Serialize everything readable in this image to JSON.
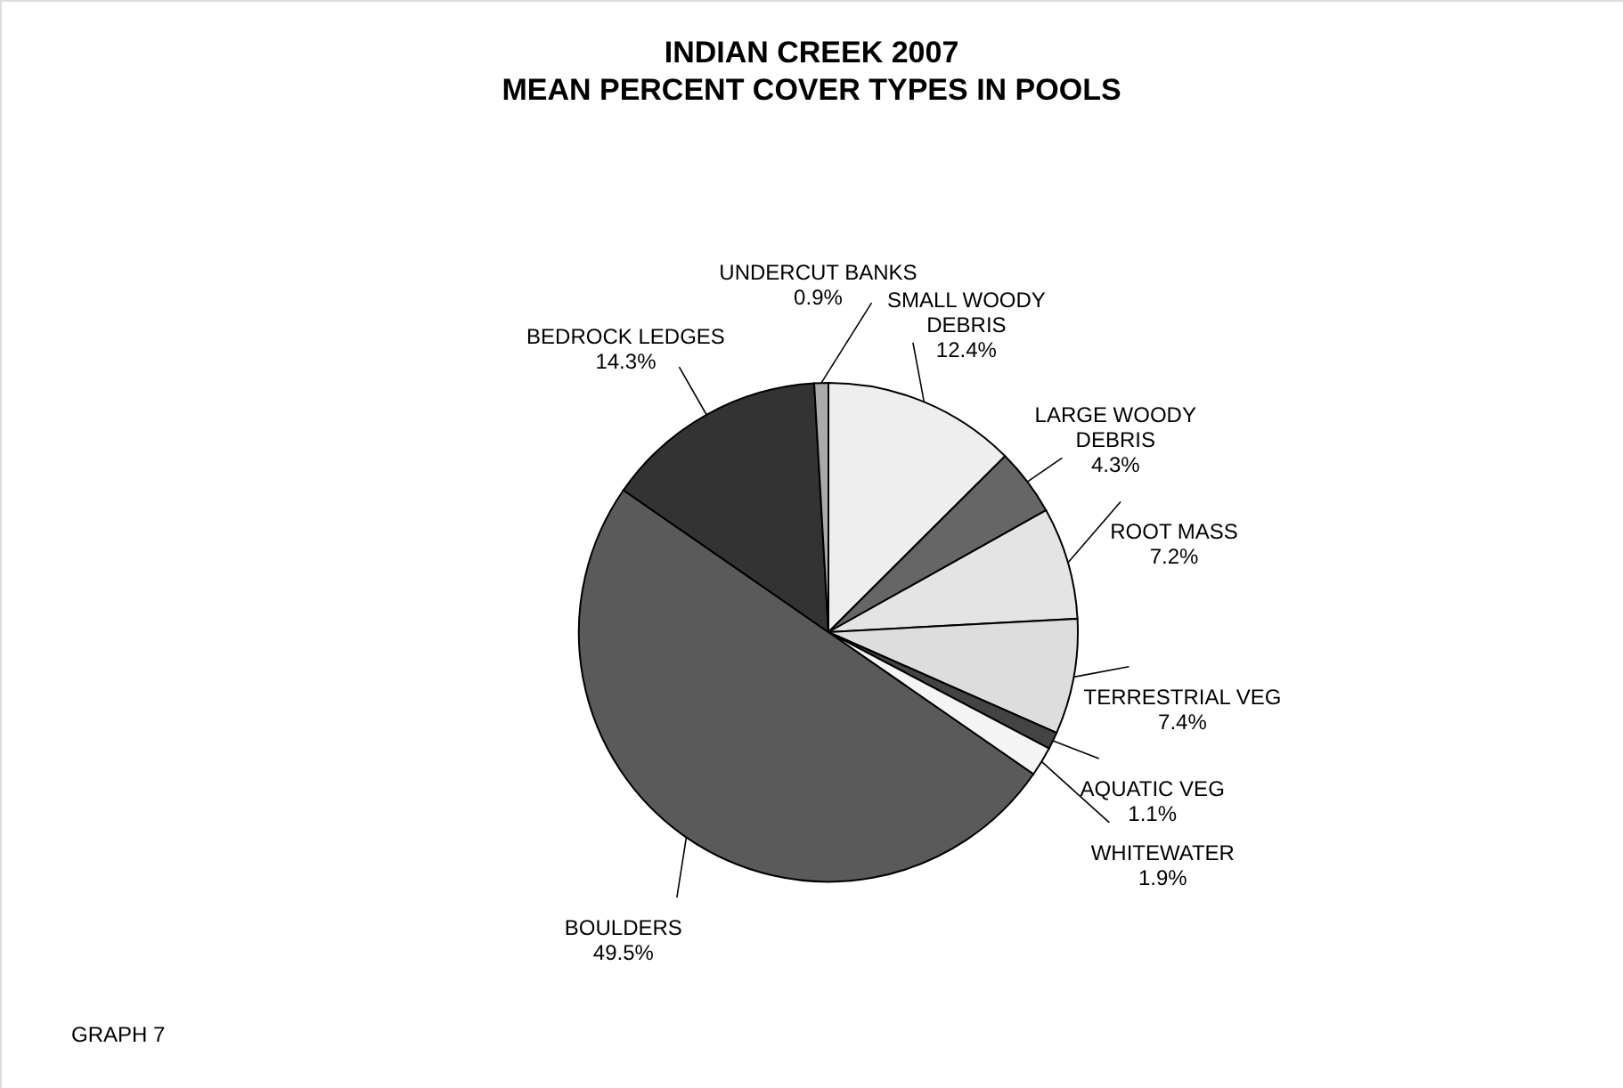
{
  "chart_data": {
    "type": "pie",
    "title": "INDIAN CREEK 2007",
    "subtitle": "MEAN PERCENT COVER TYPES IN POOLS",
    "categories": [
      "SMALL WOODY DEBRIS",
      "LARGE WOODY DEBRIS",
      "ROOT MASS",
      "TERRESTRIAL VEG",
      "AQUATIC VEG",
      "WHITEWATER",
      "BOULDERS",
      "BEDROCK LEDGES",
      "UNDERCUT BANKS"
    ],
    "values": [
      12.4,
      4.3,
      7.2,
      7.4,
      1.1,
      1.9,
      49.5,
      14.3,
      0.9
    ],
    "value_labels": [
      "12.4%",
      "4.3%",
      "7.2%",
      "7.4%",
      "1.1%",
      "1.9%",
      "49.5%",
      "14.3%",
      "0.9%"
    ],
    "colors": [
      "#eeeeee",
      "#666666",
      "#e4e4e4",
      "#dddddd",
      "#444444",
      "#f4f4f4",
      "#5a5a5a",
      "#333333",
      "#aaaaaa"
    ],
    "legend": false,
    "annotations": [
      "GRAPH 7"
    ]
  }
}
